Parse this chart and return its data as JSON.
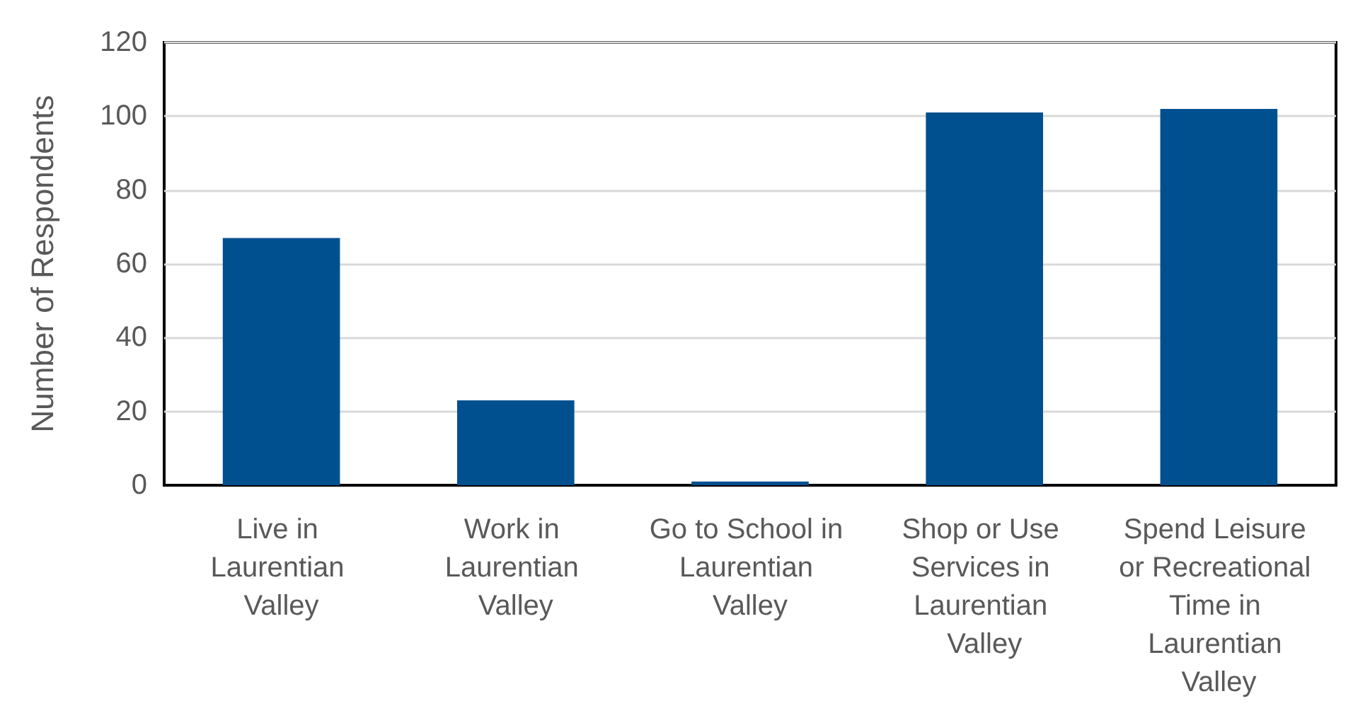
{
  "chart_data": {
    "type": "bar",
    "ylabel": "Number of Respondents",
    "categories": [
      "Live in Laurentian Valley",
      "Work in Laurentian Valley",
      "Go to School in Laurentian Valley",
      "Shop or Use Services in Laurentian Valley",
      "Spend Leisure or Recreational Time in Laurentian Valley"
    ],
    "values": [
      67,
      23,
      1,
      101,
      102
    ],
    "color": "#00508f",
    "ylim": [
      0,
      120
    ],
    "yticks": [
      0,
      20,
      40,
      60,
      80,
      100,
      120
    ],
    "grid": "y"
  }
}
